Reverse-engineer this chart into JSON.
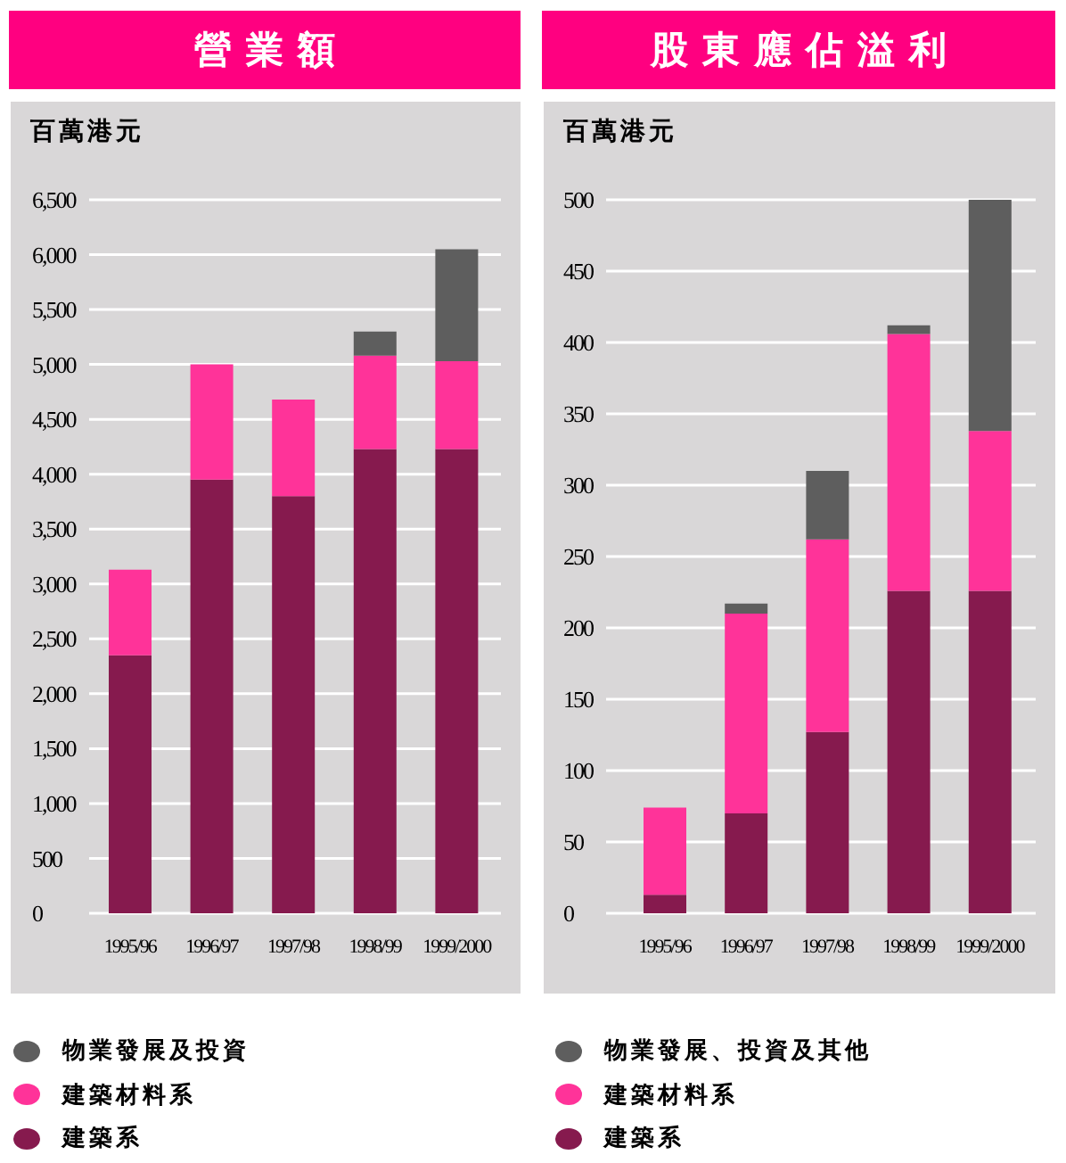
{
  "chart_data": [
    {
      "type": "bar",
      "title": "營業額",
      "ylabel": "百萬港元",
      "categories": [
        "1995/96",
        "1996/97",
        "1997/98",
        "1998/99",
        "1999/2000"
      ],
      "stacked": true,
      "series": [
        {
          "name": "建築系",
          "color": "#861a4e",
          "values": [
            2350,
            3950,
            3800,
            4230,
            4230
          ]
        },
        {
          "name": "建築材料系",
          "color": "#ff3399",
          "values": [
            780,
            1050,
            880,
            850,
            800
          ]
        },
        {
          "name": "物業發展及投資",
          "color": "#5e5e5e",
          "values": [
            null,
            null,
            null,
            220,
            1020
          ]
        }
      ],
      "ylim": [
        0,
        6500
      ],
      "yticks": [
        0,
        500,
        {
          "value": 1000,
          "label": "1,000"
        },
        {
          "value": 1500,
          "label": "1,500"
        },
        {
          "value": 2000,
          "label": "2,000"
        },
        {
          "value": 2500,
          "label": "2,500"
        },
        {
          "value": 3000,
          "label": "3,000"
        },
        {
          "value": 3500,
          "label": "3,500"
        },
        {
          "value": 4000,
          "label": "4,000"
        },
        {
          "value": 4500,
          "label": "4,500"
        },
        {
          "value": 5000,
          "label": "5,000"
        },
        {
          "value": 5500,
          "label": "5,500"
        },
        {
          "value": 6000,
          "label": "6,000"
        },
        {
          "value": 6500,
          "label": "6,500"
        }
      ],
      "grid": "y",
      "legend": "bottom"
    },
    {
      "type": "bar",
      "title": "股東應佔溢利",
      "ylabel": "百萬港元",
      "categories": [
        "1995/96",
        "1996/97",
        "1997/98",
        "1998/99",
        "1999/2000"
      ],
      "stacked": true,
      "series": [
        {
          "name": "建築系",
          "color": "#861a4e",
          "values": [
            13,
            70,
            127,
            226,
            226
          ]
        },
        {
          "name": "建築材料系",
          "color": "#ff3399",
          "values": [
            61,
            140,
            135,
            180,
            112
          ]
        },
        {
          "name": "物業發展、投資及其他",
          "color": "#5e5e5e",
          "values": [
            null,
            7,
            48,
            6,
            162
          ]
        }
      ],
      "ylim": [
        0,
        500
      ],
      "yticks": [
        0,
        50,
        100,
        150,
        200,
        250,
        300,
        350,
        400,
        450,
        500
      ],
      "grid": "y",
      "legend": "bottom"
    }
  ]
}
